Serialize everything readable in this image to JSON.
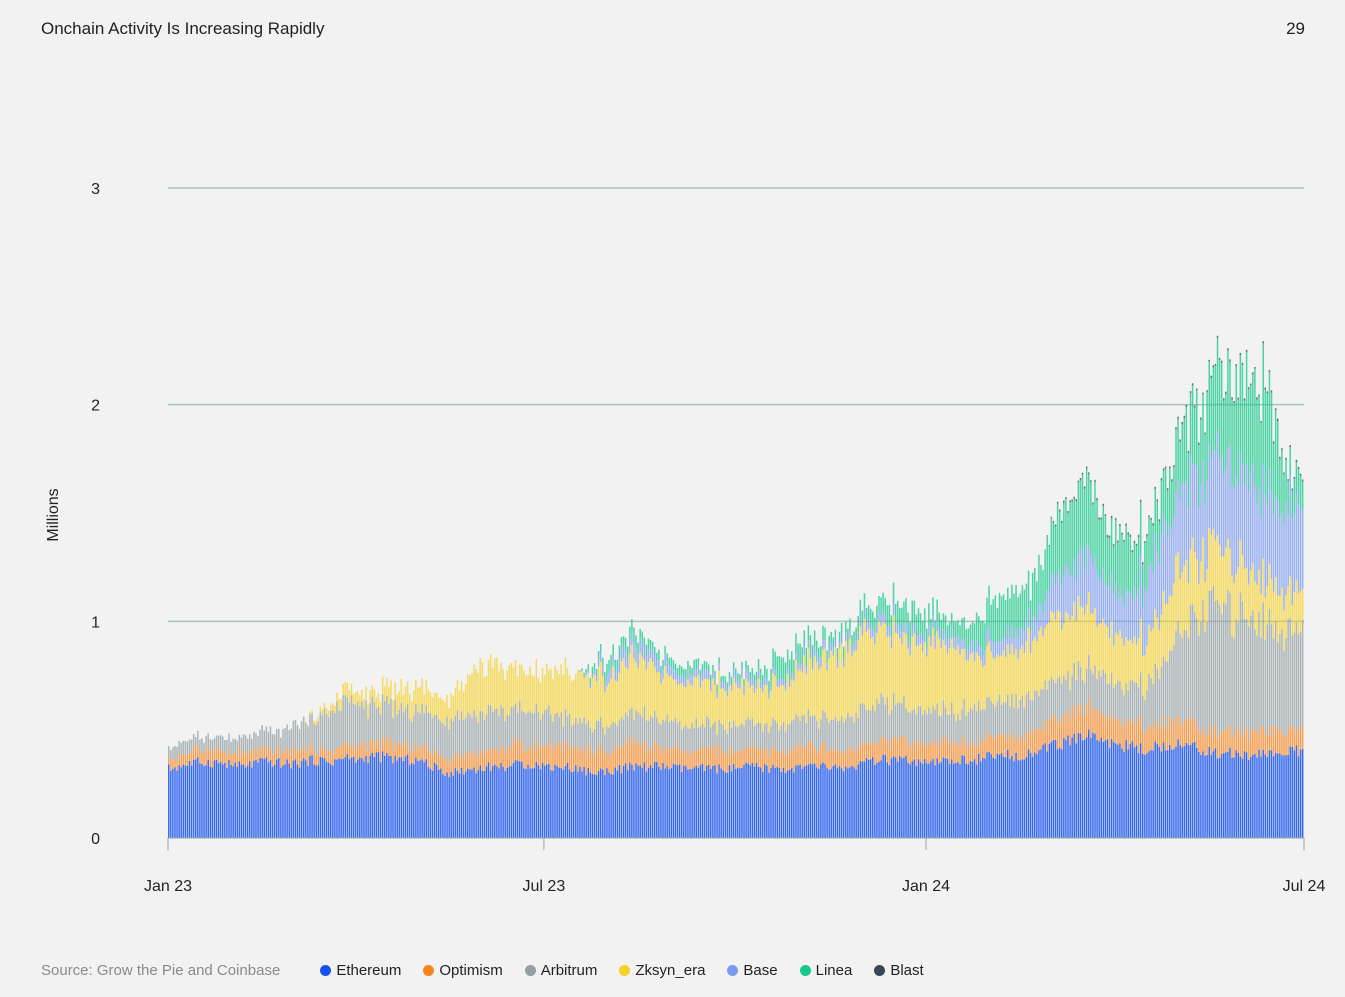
{
  "header": {
    "title": "Onchain Activity Is Increasing Rapidly",
    "page_number": "29"
  },
  "footer": {
    "source": "Source: Grow the Pie and Coinbase"
  },
  "colors": {
    "background": "#f2f2f2",
    "grid": "#a9c1b8",
    "axis": "#9aa5a8",
    "Ethereum": "#1652f0",
    "Optimism": "#f7841e",
    "Arbitrum": "#939fa3",
    "Zksyn_era": "#f5d22a",
    "Base": "#7b9bf0",
    "Linea": "#14c98a",
    "Blast": "#3b4754"
  },
  "chart_data": {
    "type": "bar",
    "stacked": true,
    "ylabel": "Millions",
    "ylim": [
      0,
      3
    ],
    "yticks": [
      "0",
      "1",
      "2",
      "3"
    ],
    "xlim": [
      "2023-01-01",
      "2024-07-01"
    ],
    "xticks": [
      {
        "date": "2023-01-01",
        "label": "Jan 23"
      },
      {
        "date": "2023-07-01",
        "label": "Jul 23"
      },
      {
        "date": "2024-01-01",
        "label": "Jan 24"
      },
      {
        "date": "2024-07-01",
        "label": "Jul 24"
      }
    ],
    "grid": true,
    "legend_position": "bottom",
    "series": [
      {
        "name": "Ethereum",
        "color": "#1652f0"
      },
      {
        "name": "Optimism",
        "color": "#f7841e"
      },
      {
        "name": "Arbitrum",
        "color": "#939fa3"
      },
      {
        "name": "Zksyn_era",
        "color": "#f5d22a"
      },
      {
        "name": "Base",
        "color": "#7b9bf0"
      },
      {
        "name": "Linea",
        "color": "#14c98a"
      },
      {
        "name": "Blast",
        "color": "#3b4754"
      }
    ],
    "weekly_values": {
      "week_start": [
        "2023-01-02",
        "2023-01-09",
        "2023-01-16",
        "2023-01-23",
        "2023-01-30",
        "2023-02-06",
        "2023-02-13",
        "2023-02-20",
        "2023-02-27",
        "2023-03-06",
        "2023-03-13",
        "2023-03-20",
        "2023-03-27",
        "2023-04-03",
        "2023-04-10",
        "2023-04-17",
        "2023-04-24",
        "2023-05-01",
        "2023-05-08",
        "2023-05-15",
        "2023-05-22",
        "2023-05-29",
        "2023-06-05",
        "2023-06-12",
        "2023-06-19",
        "2023-06-26",
        "2023-07-03",
        "2023-07-10",
        "2023-07-17",
        "2023-07-24",
        "2023-07-31",
        "2023-08-07",
        "2023-08-14",
        "2023-08-21",
        "2023-08-28",
        "2023-09-04",
        "2023-09-11",
        "2023-09-18",
        "2023-09-25",
        "2023-10-02",
        "2023-10-09",
        "2023-10-16",
        "2023-10-23",
        "2023-10-30",
        "2023-11-06",
        "2023-11-13",
        "2023-11-20",
        "2023-11-27",
        "2023-12-04",
        "2023-12-11",
        "2023-12-18",
        "2023-12-25",
        "2024-01-01",
        "2024-01-08",
        "2024-01-15",
        "2024-01-22",
        "2024-01-29",
        "2024-02-05",
        "2024-02-12",
        "2024-02-19",
        "2024-02-26",
        "2024-03-04",
        "2024-03-11",
        "2024-03-18",
        "2024-03-25",
        "2024-04-01",
        "2024-04-08",
        "2024-04-15",
        "2024-04-22",
        "2024-04-29",
        "2024-05-06",
        "2024-05-13",
        "2024-05-20",
        "2024-05-27",
        "2024-06-03",
        "2024-06-10",
        "2024-06-17",
        "2024-06-24"
      ],
      "Ethereum": [
        0.32,
        0.34,
        0.35,
        0.35,
        0.34,
        0.33,
        0.35,
        0.35,
        0.34,
        0.35,
        0.36,
        0.35,
        0.37,
        0.36,
        0.38,
        0.37,
        0.36,
        0.36,
        0.33,
        0.3,
        0.31,
        0.32,
        0.33,
        0.33,
        0.34,
        0.34,
        0.33,
        0.33,
        0.32,
        0.3,
        0.31,
        0.32,
        0.33,
        0.33,
        0.33,
        0.32,
        0.32,
        0.32,
        0.32,
        0.32,
        0.33,
        0.32,
        0.32,
        0.32,
        0.33,
        0.33,
        0.32,
        0.33,
        0.35,
        0.36,
        0.36,
        0.35,
        0.34,
        0.35,
        0.36,
        0.36,
        0.37,
        0.38,
        0.38,
        0.39,
        0.41,
        0.43,
        0.45,
        0.48,
        0.46,
        0.43,
        0.42,
        0.41,
        0.42,
        0.44,
        0.42,
        0.41,
        0.39,
        0.39,
        0.38,
        0.39,
        0.39,
        0.4
      ],
      "Optimism": [
        0.04,
        0.05,
        0.06,
        0.06,
        0.05,
        0.06,
        0.05,
        0.05,
        0.06,
        0.06,
        0.05,
        0.05,
        0.06,
        0.06,
        0.06,
        0.07,
        0.06,
        0.06,
        0.07,
        0.07,
        0.08,
        0.08,
        0.08,
        0.09,
        0.09,
        0.09,
        0.1,
        0.1,
        0.09,
        0.1,
        0.1,
        0.1,
        0.11,
        0.09,
        0.08,
        0.08,
        0.08,
        0.09,
        0.09,
        0.08,
        0.08,
        0.08,
        0.08,
        0.09,
        0.09,
        0.08,
        0.08,
        0.08,
        0.08,
        0.09,
        0.09,
        0.09,
        0.08,
        0.08,
        0.09,
        0.08,
        0.08,
        0.09,
        0.09,
        0.1,
        0.1,
        0.11,
        0.12,
        0.13,
        0.12,
        0.12,
        0.12,
        0.11,
        0.1,
        0.12,
        0.12,
        0.1,
        0.1,
        0.1,
        0.1,
        0.11,
        0.11,
        0.1
      ],
      "Arbitrum": [
        0.06,
        0.06,
        0.05,
        0.06,
        0.07,
        0.07,
        0.08,
        0.09,
        0.1,
        0.12,
        0.13,
        0.18,
        0.2,
        0.19,
        0.17,
        0.16,
        0.17,
        0.16,
        0.18,
        0.18,
        0.19,
        0.17,
        0.18,
        0.16,
        0.16,
        0.16,
        0.14,
        0.14,
        0.12,
        0.12,
        0.12,
        0.12,
        0.13,
        0.13,
        0.13,
        0.12,
        0.12,
        0.12,
        0.11,
        0.11,
        0.12,
        0.11,
        0.12,
        0.12,
        0.13,
        0.13,
        0.15,
        0.16,
        0.17,
        0.18,
        0.17,
        0.15,
        0.14,
        0.15,
        0.14,
        0.16,
        0.17,
        0.16,
        0.16,
        0.17,
        0.18,
        0.18,
        0.17,
        0.17,
        0.18,
        0.17,
        0.17,
        0.19,
        0.25,
        0.35,
        0.45,
        0.55,
        0.6,
        0.52,
        0.58,
        0.5,
        0.48,
        0.45
      ],
      "Zksyn_era": [
        0.0,
        0.0,
        0.0,
        0.0,
        0.0,
        0.0,
        0.0,
        0.0,
        0.0,
        0.0,
        0.02,
        0.03,
        0.06,
        0.05,
        0.06,
        0.08,
        0.1,
        0.12,
        0.09,
        0.1,
        0.13,
        0.2,
        0.22,
        0.2,
        0.19,
        0.18,
        0.2,
        0.21,
        0.22,
        0.22,
        0.22,
        0.24,
        0.25,
        0.23,
        0.22,
        0.2,
        0.21,
        0.2,
        0.19,
        0.18,
        0.17,
        0.18,
        0.19,
        0.22,
        0.25,
        0.25,
        0.3,
        0.34,
        0.34,
        0.33,
        0.31,
        0.3,
        0.32,
        0.32,
        0.28,
        0.24,
        0.22,
        0.21,
        0.22,
        0.25,
        0.26,
        0.28,
        0.3,
        0.28,
        0.25,
        0.22,
        0.2,
        0.22,
        0.26,
        0.3,
        0.3,
        0.28,
        0.26,
        0.24,
        0.22,
        0.21,
        0.2,
        0.17
      ],
      "Base": [
        0.0,
        0.0,
        0.0,
        0.0,
        0.0,
        0.0,
        0.0,
        0.0,
        0.0,
        0.0,
        0.0,
        0.0,
        0.0,
        0.0,
        0.0,
        0.0,
        0.0,
        0.0,
        0.0,
        0.0,
        0.0,
        0.0,
        0.0,
        0.0,
        0.0,
        0.0,
        0.0,
        0.0,
        0.0,
        0.02,
        0.05,
        0.06,
        0.07,
        0.05,
        0.05,
        0.04,
        0.04,
        0.04,
        0.03,
        0.04,
        0.04,
        0.03,
        0.03,
        0.03,
        0.04,
        0.04,
        0.04,
        0.04,
        0.05,
        0.05,
        0.05,
        0.05,
        0.05,
        0.05,
        0.05,
        0.05,
        0.06,
        0.07,
        0.08,
        0.09,
        0.12,
        0.18,
        0.22,
        0.25,
        0.22,
        0.2,
        0.22,
        0.28,
        0.32,
        0.35,
        0.38,
        0.4,
        0.42,
        0.42,
        0.45,
        0.42,
        0.38,
        0.4
      ],
      "Linea": [
        0.0,
        0.0,
        0.0,
        0.0,
        0.0,
        0.0,
        0.0,
        0.0,
        0.0,
        0.0,
        0.0,
        0.0,
        0.0,
        0.0,
        0.0,
        0.0,
        0.0,
        0.0,
        0.0,
        0.0,
        0.0,
        0.0,
        0.0,
        0.0,
        0.0,
        0.0,
        0.0,
        0.0,
        0.0,
        0.03,
        0.05,
        0.05,
        0.06,
        0.04,
        0.04,
        0.04,
        0.04,
        0.03,
        0.03,
        0.03,
        0.04,
        0.06,
        0.1,
        0.08,
        0.07,
        0.06,
        0.05,
        0.06,
        0.08,
        0.08,
        0.1,
        0.12,
        0.1,
        0.08,
        0.07,
        0.1,
        0.15,
        0.2,
        0.18,
        0.16,
        0.22,
        0.28,
        0.3,
        0.35,
        0.3,
        0.25,
        0.25,
        0.22,
        0.22,
        0.25,
        0.3,
        0.35,
        0.4,
        0.42,
        0.45,
        0.5,
        0.35,
        0.15
      ],
      "Blast": [
        0.0,
        0.0,
        0.0,
        0.0,
        0.0,
        0.0,
        0.0,
        0.0,
        0.0,
        0.0,
        0.0,
        0.0,
        0.0,
        0.0,
        0.0,
        0.0,
        0.0,
        0.0,
        0.0,
        0.0,
        0.0,
        0.0,
        0.0,
        0.0,
        0.0,
        0.0,
        0.0,
        0.0,
        0.0,
        0.0,
        0.0,
        0.0,
        0.0,
        0.0,
        0.0,
        0.0,
        0.0,
        0.0,
        0.0,
        0.0,
        0.0,
        0.0,
        0.0,
        0.0,
        0.0,
        0.0,
        0.0,
        0.0,
        0.0,
        0.0,
        0.0,
        0.0,
        0.0,
        0.0,
        0.0,
        0.0,
        0.0,
        0.0,
        0.0,
        0.0,
        0.0,
        0.01,
        0.01,
        0.01,
        0.01,
        0.01,
        0.01,
        0.01,
        0.01,
        0.01,
        0.01,
        0.01,
        0.01,
        0.01,
        0.01,
        0.01,
        0.01,
        0.01
      ]
    }
  }
}
